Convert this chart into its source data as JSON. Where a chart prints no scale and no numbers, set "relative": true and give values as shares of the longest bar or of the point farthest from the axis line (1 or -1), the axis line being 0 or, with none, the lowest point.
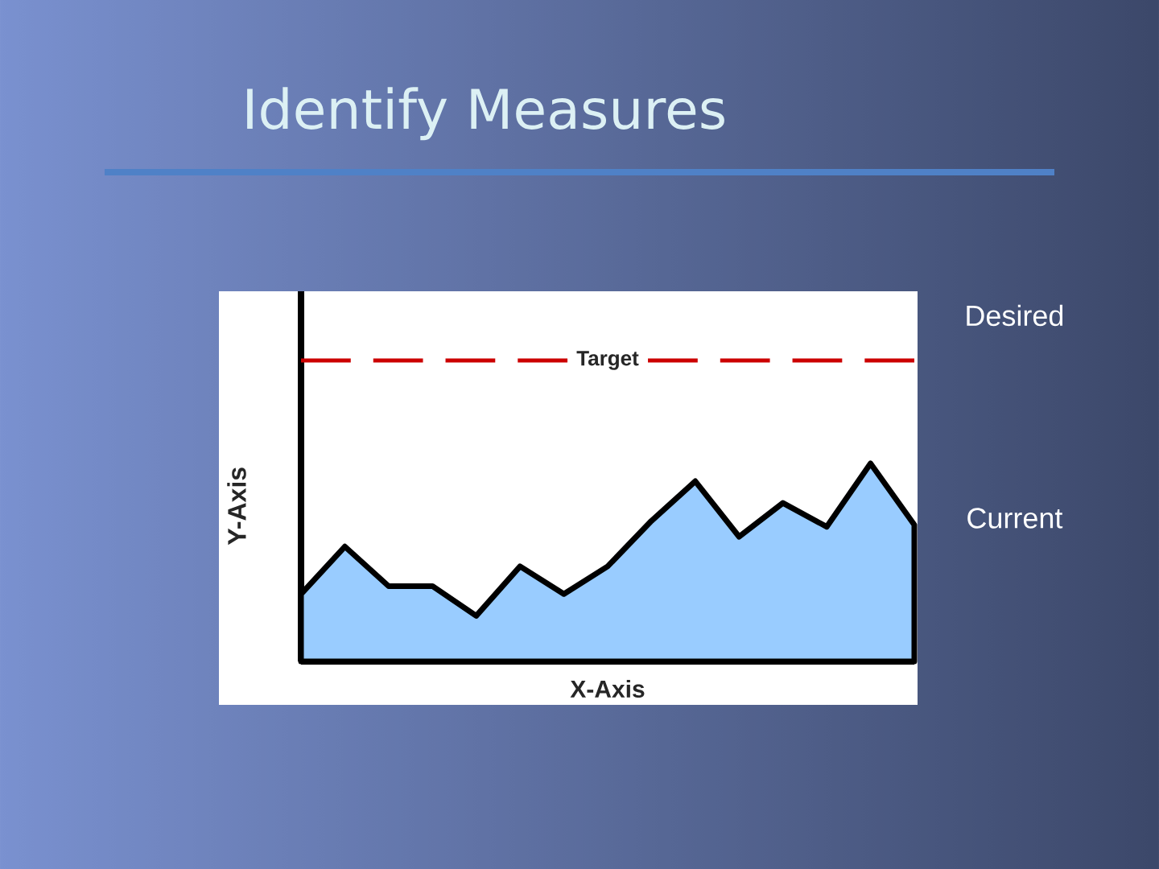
{
  "chart_data": {
    "type": "area",
    "title": "Identify Measures",
    "xlabel": "X-Axis",
    "ylabel": "Y-Axis",
    "categories": [
      null,
      null,
      null,
      null,
      null,
      null,
      null,
      null,
      null,
      null,
      null,
      null,
      null,
      null,
      null
    ],
    "relative": true,
    "series": [
      {
        "color": "#99ccff",
        "values": [
          0.34,
          0.58,
          0.38,
          0.38,
          0.23,
          0.48,
          0.34,
          0.48,
          0.71,
          0.91,
          0.63,
          0.8,
          0.68,
          1,
          0.69
        ]
      }
    ],
    "ref_lines": [
      {
        "axis": "y",
        "value": 1.52,
        "label": "Target",
        "color": "#cc0000",
        "line_style": "dashed"
      }
    ],
    "annotations": [
      "Desired",
      "Current"
    ]
  }
}
